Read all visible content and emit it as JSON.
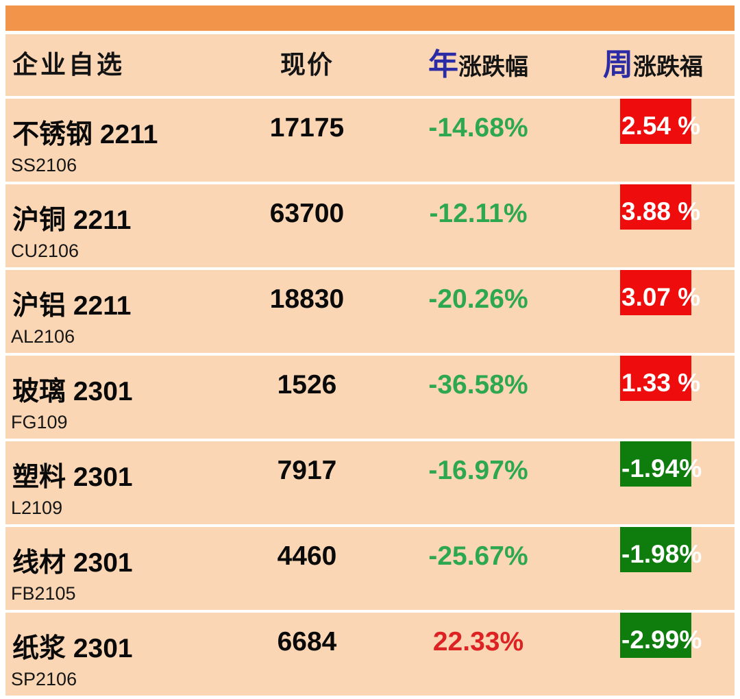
{
  "colors": {
    "top_bar": "#F2944A",
    "row_bg": "#FAD6B4",
    "header_prefix_blue": "#2B2BA6",
    "year_down_green": "#2EA751",
    "year_up_red": "#DC2222",
    "week_up_box_red": "#EE0C0C",
    "week_down_box_green": "#0E7D0E"
  },
  "header": {
    "company_col": "企业自选",
    "price_col": "现价",
    "year_prefix": "年",
    "year_suffix": "涨跌幅",
    "week_prefix": "周",
    "week_suffix": "涨跌福"
  },
  "rows": [
    {
      "name": "不锈钢 2211",
      "code": "SS2106",
      "price": "17175",
      "year_change": "-14.68%",
      "year_dir": "neg",
      "week_change": "2.54 %",
      "week_dir": "pos"
    },
    {
      "name": "沪铜 2211",
      "code": "CU2106",
      "price": "63700",
      "year_change": "-12.11%",
      "year_dir": "neg",
      "week_change": "3.88 %",
      "week_dir": "pos"
    },
    {
      "name": "沪铝 2211",
      "code": "AL2106",
      "price": "18830",
      "year_change": "-20.26%",
      "year_dir": "neg",
      "week_change": "3.07 %",
      "week_dir": "pos"
    },
    {
      "name": "玻璃 2301",
      "code": "FG109",
      "price": "1526",
      "year_change": "-36.58%",
      "year_dir": "neg",
      "week_change": "1.33 %",
      "week_dir": "pos"
    },
    {
      "name": "塑料 2301",
      "code": "L2109",
      "price": "7917",
      "year_change": "-16.97%",
      "year_dir": "neg",
      "week_change": "-1.94%",
      "week_dir": "neg"
    },
    {
      "name": "线材 2301",
      "code": "FB2105",
      "price": "4460",
      "year_change": "-25.67%",
      "year_dir": "neg",
      "week_change": "-1.98%",
      "week_dir": "neg"
    },
    {
      "name": "纸浆 2301",
      "code": "SP2106",
      "price": "6684",
      "year_change": "22.33%",
      "year_dir": "pos",
      "week_change": "-2.99%",
      "week_dir": "neg"
    }
  ]
}
